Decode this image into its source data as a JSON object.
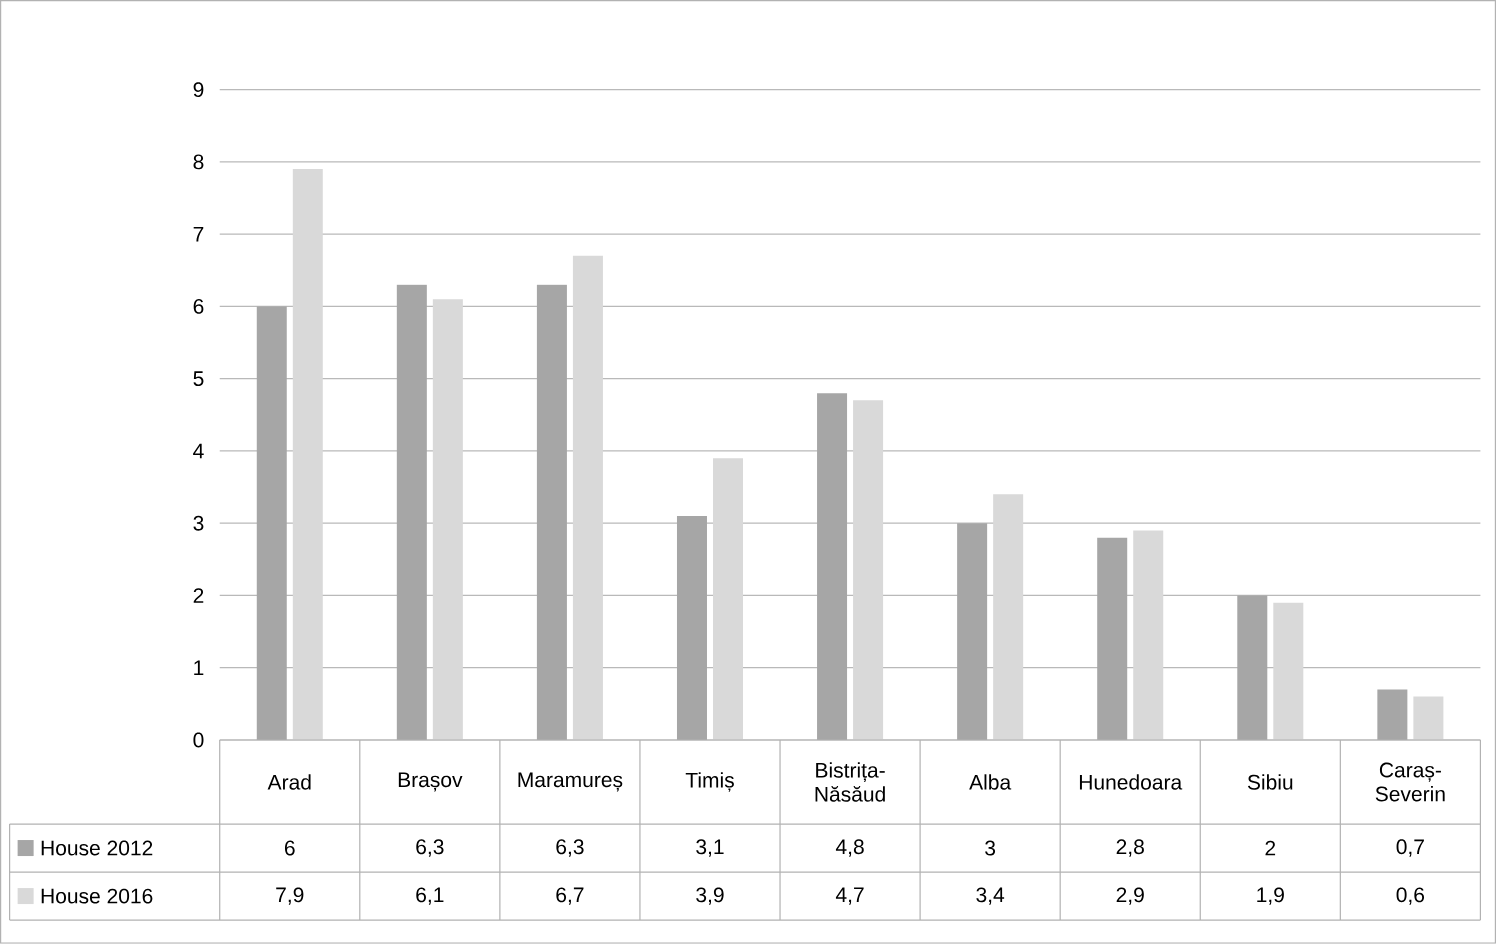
{
  "chart_data": {
    "type": "bar",
    "categories": [
      "Arad",
      "Brașov",
      "Maramureș",
      "Timiș",
      "Bistrița-Năsăud",
      "Alba",
      "Hunedoara",
      "Sibiu",
      "Caraș-Severin"
    ],
    "series": [
      {
        "name": "House 2012",
        "color": "#a6a6a6",
        "values": [
          6,
          6.3,
          6.3,
          3.1,
          4.8,
          3,
          2.8,
          2,
          0.7
        ],
        "value_labels": [
          "6",
          "6,3",
          "6,3",
          "3,1",
          "4,8",
          "3",
          "2,8",
          "2",
          "0,7"
        ]
      },
      {
        "name": "House 2016",
        "color": "#d9d9d9",
        "values": [
          7.9,
          6.1,
          6.7,
          3.9,
          4.7,
          3.4,
          2.9,
          1.9,
          0.6
        ],
        "value_labels": [
          "7,9",
          "6,1",
          "6,7",
          "3,9",
          "4,7",
          "3,4",
          "2,9",
          "1,9",
          "0,6"
        ]
      }
    ],
    "ylim": [
      0,
      9
    ],
    "yticks": [
      0,
      1,
      2,
      3,
      4,
      5,
      6,
      7,
      8,
      9
    ],
    "grid": "y",
    "legend": "bottom"
  }
}
